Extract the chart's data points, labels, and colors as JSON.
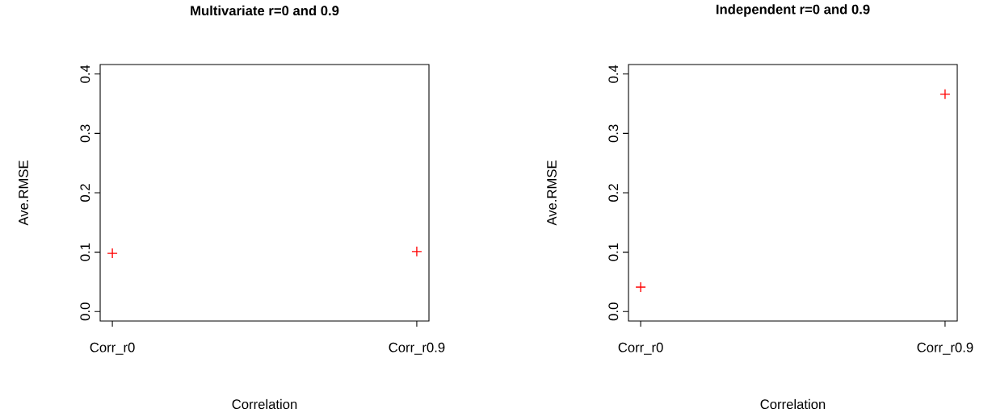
{
  "chart_data": [
    {
      "type": "scatter",
      "title": "Multivariate r=0 and 0.9",
      "xlabel": "Correlation",
      "ylabel": "Ave.RMSE",
      "categories": [
        "Corr_r0",
        "Corr_r0.9"
      ],
      "values": [
        0.098,
        0.101
      ],
      "color": "#ff0000",
      "marker": "cross",
      "ylim": [
        -0.016,
        0.416
      ],
      "yticks": [
        {
          "value": 0,
          "label": "0.0"
        },
        {
          "value": 0.1,
          "label": "0.1"
        },
        {
          "value": 0.2,
          "label": "0.2"
        },
        {
          "value": 0.3,
          "label": "0.3"
        },
        {
          "value": 0.4,
          "label": "0.4"
        }
      ]
    },
    {
      "type": "scatter",
      "title": "Independent r=0 and 0.9",
      "xlabel": "Correlation",
      "ylabel": "Ave.RMSE",
      "categories": [
        "Corr_r0",
        "Corr_r0.9"
      ],
      "values": [
        0.041,
        0.366
      ],
      "color": "#ff0000",
      "marker": "cross",
      "ylim": [
        -0.016,
        0.416
      ],
      "yticks": [
        {
          "value": 0,
          "label": "0.0"
        },
        {
          "value": 0.1,
          "label": "0.1"
        },
        {
          "value": 0.2,
          "label": "0.2"
        },
        {
          "value": 0.3,
          "label": "0.3"
        },
        {
          "value": 0.4,
          "label": "0.4"
        }
      ]
    }
  ]
}
